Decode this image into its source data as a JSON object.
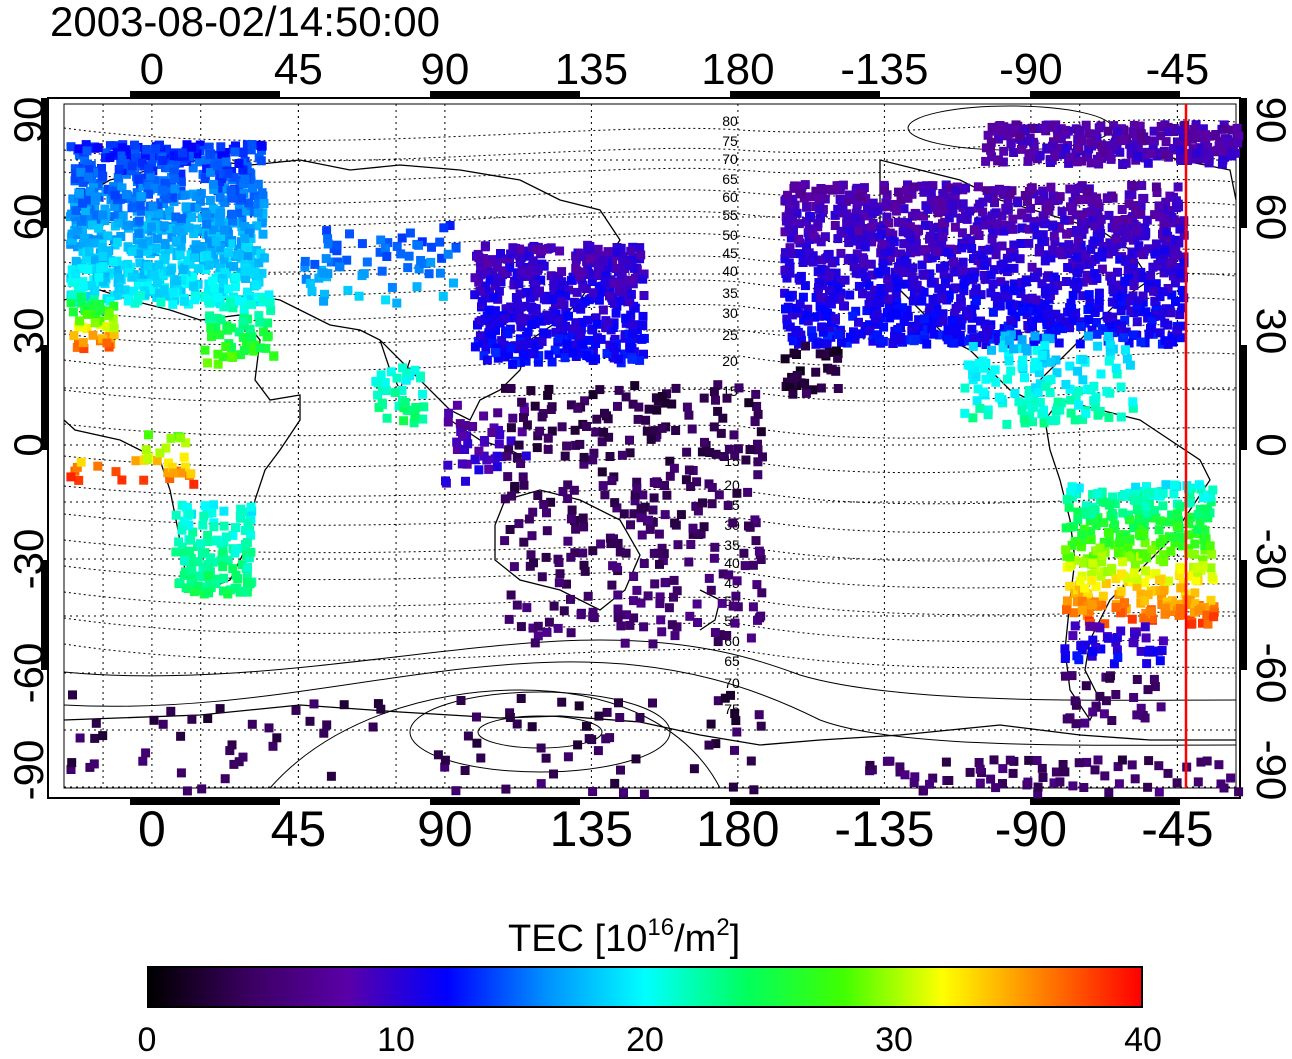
{
  "timestamp": "2003-08-02/14:50:00",
  "map": {
    "type": "global TEC map",
    "top_lon_ticks": [
      "0",
      "45",
      "90",
      "135",
      "180",
      "-135",
      "-90",
      "-45"
    ],
    "bottom_lon_ticks": [
      "0",
      "45",
      "90",
      "135",
      "180",
      "-135",
      "-90",
      "-45"
    ],
    "left_lat_ticks": [
      "90",
      "60",
      "30",
      "0",
      "-30",
      "-60",
      "-90"
    ],
    "right_lat_ticks": [
      "90",
      "60",
      "30",
      "0",
      "-30",
      "-60",
      "-90"
    ],
    "grid": "dotted",
    "contour_labels_north": [
      "80",
      "75",
      "70",
      "65",
      "60",
      "55",
      "50",
      "45",
      "40",
      "35",
      "30",
      "25",
      "20",
      "15"
    ],
    "contour_labels_south": [
      "15",
      "20",
      "25",
      "30",
      "35",
      "40",
      "45",
      "50",
      "55",
      "60",
      "65",
      "70",
      "75"
    ],
    "terminator_color": "#ff0000",
    "terminator_lon": -47
  },
  "colorbar": {
    "title": "TEC  [10",
    "title_exp1": "16",
    "title_mid": "/m",
    "title_exp2": "2",
    "title_end": "]",
    "ticks": [
      "0",
      "10",
      "20",
      "30",
      "40"
    ],
    "range": [
      0,
      40
    ],
    "colors": [
      "#000000",
      "#3a0060",
      "#5a00a8",
      "#0000ff",
      "#0090ff",
      "#00ffff",
      "#00ff60",
      "#40ff00",
      "#ffff00",
      "#ff8000",
      "#ff0000"
    ]
  }
}
